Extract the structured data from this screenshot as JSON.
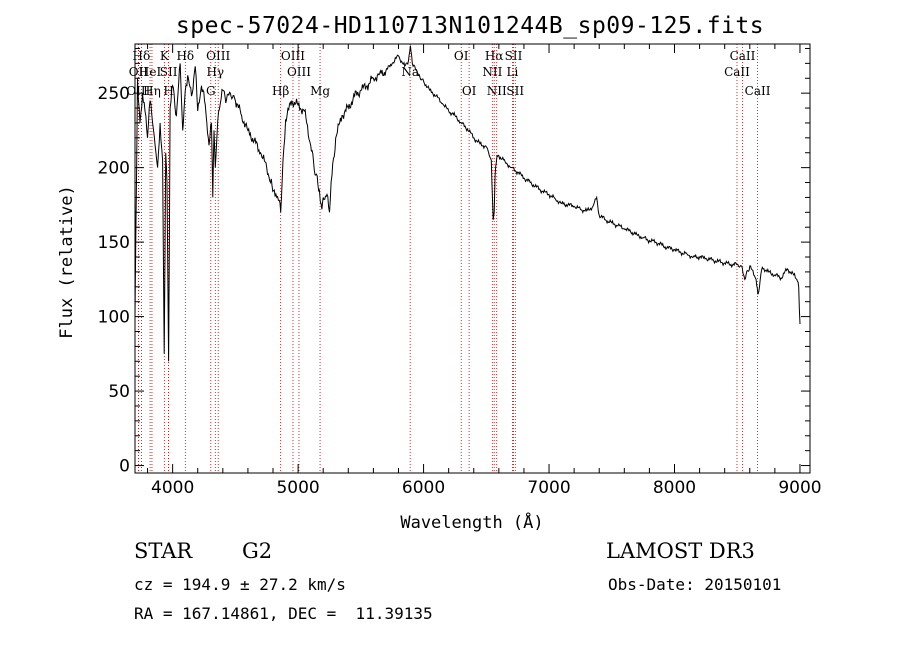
{
  "chart_data": {
    "type": "line",
    "title": "spec-57024-HD110713N101244B_sp09-125.fits",
    "xlabel": "Wavelength (Å)",
    "ylabel": "Flux (relative)",
    "xlim": [
      3700,
      9080
    ],
    "ylim": [
      -5,
      283
    ],
    "xticks": [
      4000,
      5000,
      6000,
      7000,
      8000,
      9000
    ],
    "yticks": [
      0,
      50,
      100,
      150,
      200,
      250
    ],
    "series": [
      {
        "name": "flux",
        "x": [
          3700,
          3720,
          3740,
          3760,
          3780,
          3800,
          3820,
          3840,
          3860,
          3880,
          3900,
          3920,
          3933,
          3945,
          3955,
          3968,
          3980,
          4000,
          4030,
          4060,
          4080,
          4101,
          4120,
          4150,
          4180,
          4200,
          4230,
          4260,
          4290,
          4310,
          4320,
          4330,
          4340,
          4360,
          4380,
          4400,
          4430,
          4460,
          4500,
          4550,
          4600,
          4650,
          4700,
          4750,
          4780,
          4810,
          4830,
          4850,
          4861,
          4880,
          4900,
          4950,
          5000,
          5050,
          5100,
          5140,
          5170,
          5190,
          5200,
          5230,
          5250,
          5270,
          5300,
          5350,
          5400,
          5450,
          5500,
          5550,
          5600,
          5650,
          5700,
          5750,
          5800,
          5850,
          5880,
          5895,
          5910,
          5930,
          5960,
          6000,
          6050,
          6100,
          6150,
          6200,
          6250,
          6300,
          6350,
          6400,
          6450,
          6500,
          6540,
          6555,
          6563,
          6570,
          6585,
          6600,
          6650,
          6700,
          6750,
          6800,
          6850,
          6900,
          6950,
          7000,
          7050,
          7100,
          7150,
          7200,
          7250,
          7300,
          7350,
          7380,
          7400,
          7450,
          7500,
          7550,
          7600,
          7650,
          7700,
          7750,
          7800,
          7850,
          7900,
          7950,
          8000,
          8050,
          8100,
          8150,
          8200,
          8250,
          8300,
          8350,
          8400,
          8450,
          8500,
          8540,
          8560,
          8600,
          8650,
          8665,
          8700,
          8750,
          8800,
          8850,
          8900,
          8950,
          8975,
          8990,
          9000
        ],
        "y": [
          100,
          260,
          230,
          250,
          238,
          220,
          245,
          230,
          215,
          200,
          230,
          205,
          75,
          210,
          190,
          70,
          240,
          255,
          235,
          270,
          225,
          252,
          262,
          248,
          268,
          238,
          255,
          242,
          215,
          230,
          180,
          225,
          200,
          232,
          243,
          252,
          246,
          250,
          245,
          235,
          225,
          218,
          210,
          200,
          190,
          185,
          180,
          178,
          170,
          205,
          232,
          245,
          242,
          238,
          215,
          195,
          185,
          172,
          180,
          182,
          170,
          195,
          220,
          235,
          240,
          248,
          252,
          255,
          260,
          263,
          265,
          270,
          275,
          268,
          272,
          282,
          270,
          268,
          262,
          258,
          252,
          248,
          243,
          238,
          235,
          230,
          226,
          220,
          216,
          214,
          205,
          165,
          170,
          195,
          208,
          208,
          204,
          200,
          197,
          193,
          190,
          187,
          184,
          182,
          179,
          176,
          175,
          174,
          172,
          171,
          174,
          180,
          168,
          165,
          163,
          161,
          159,
          157,
          155,
          153,
          151,
          150,
          148,
          146,
          145,
          143,
          142,
          140,
          140,
          139,
          138,
          137,
          136,
          135,
          135,
          133,
          125,
          134,
          125,
          115,
          133,
          130,
          128,
          126,
          132,
          128,
          125,
          120,
          95
        ]
      }
    ],
    "lines": [
      {
        "name": "Hδ",
        "x": 3751,
        "row": 1
      },
      {
        "name": "OII",
        "x": 3727,
        "row": 2
      },
      {
        "name": "OIII",
        "x": 3727,
        "row": 3
      },
      {
        "name": "HeI",
        "x": 3820,
        "row": 2
      },
      {
        "name": "Hη",
        "x": 3835,
        "row": 3
      },
      {
        "name": "K",
        "x": 3934,
        "row": 1
      },
      {
        "name": "SII",
        "x": 3968,
        "row": 2
      },
      {
        "name": "H",
        "x": 3968,
        "row": 3
      },
      {
        "name": "Hδ",
        "x": 4101,
        "row": 1
      },
      {
        "name": "OIII",
        "x": 4363,
        "row": 1
      },
      {
        "name": "Hγ",
        "x": 4340,
        "row": 2
      },
      {
        "name": "G",
        "x": 4304,
        "row": 3
      },
      {
        "name": "Hβ",
        "x": 4861,
        "row": 3
      },
      {
        "name": "OIII",
        "x": 4959,
        "row": 1
      },
      {
        "name": "OIII",
        "x": 5007,
        "row": 2
      },
      {
        "name": "Mg",
        "x": 5175,
        "row": 3
      },
      {
        "name": "Na",
        "x": 5893,
        "row": 2
      },
      {
        "name": "OI",
        "x": 6300,
        "row": 1
      },
      {
        "name": "OI",
        "x": 6363,
        "row": 3
      },
      {
        "name": "Hα",
        "x": 6563,
        "row": 1
      },
      {
        "name": "NII",
        "x": 6548,
        "row": 2
      },
      {
        "name": "NII",
        "x": 6583,
        "row": 3
      },
      {
        "name": "SII",
        "x": 6717,
        "row": 1
      },
      {
        "name": "Li",
        "x": 6708,
        "row": 2
      },
      {
        "name": "SII",
        "x": 6731,
        "row": 3
      },
      {
        "name": "CaII",
        "x": 8542,
        "row": 1
      },
      {
        "name": "CaII",
        "x": 8498,
        "row": 2
      },
      {
        "name": "CaII",
        "x": 8662,
        "row": 3
      }
    ]
  },
  "info": {
    "object_type": "STAR",
    "subclass": "G2",
    "survey": "LAMOST DR3",
    "cz": "cz = 194.9 ± 27.2 km/s",
    "obs_date": "Obs-Date: 20150101",
    "coords": "RA = 167.14861, DEC =  11.39135"
  }
}
